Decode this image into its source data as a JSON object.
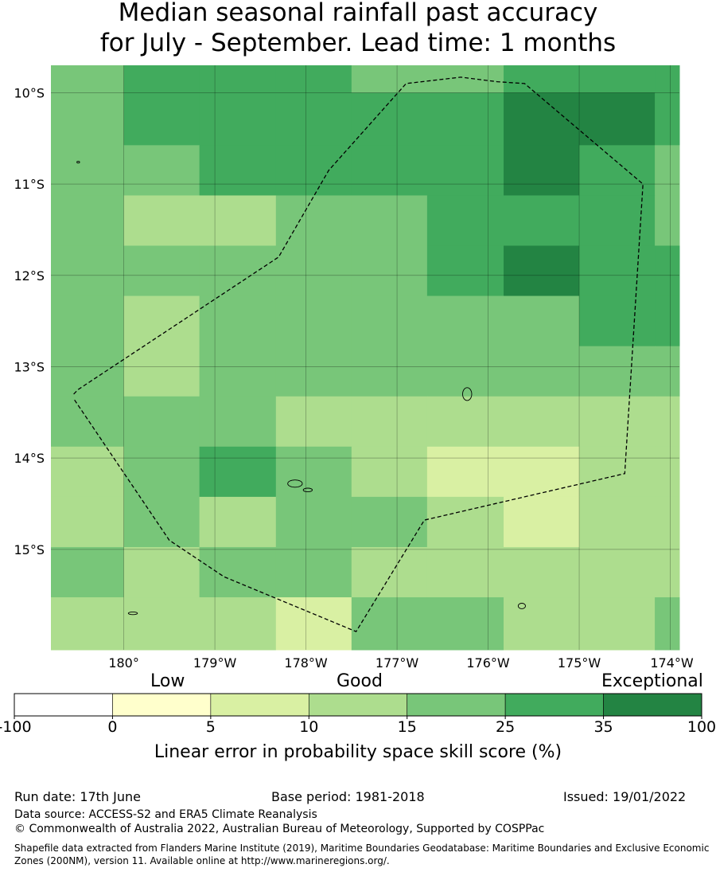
{
  "title": {
    "line1": "Median seasonal rainfall past accuracy",
    "line2": "for July - September. Lead time: 1 months"
  },
  "map": {
    "lat_labels": [
      "10°S",
      "11°S",
      "12°S",
      "13°S",
      "14°S",
      "15°S"
    ],
    "lon_labels": [
      "180°",
      "179°W",
      "178°W",
      "177°W",
      "176°W",
      "175°W",
      "174°W"
    ],
    "lon_range": [
      -180.8,
      -173.9
    ],
    "lat_range": [
      -9.7,
      -16.1
    ],
    "grid_lon_edges": [
      -180.8,
      -180.0,
      -179.17,
      -178.33,
      -177.5,
      -176.67,
      -175.83,
      -175.0,
      -174.17,
      -173.9
    ],
    "grid_lat_edges": [
      -9.7,
      -10.0,
      -10.575,
      -11.125,
      -11.675,
      -12.225,
      -12.775,
      -13.325,
      -13.875,
      -14.425,
      -14.975,
      -15.525,
      -16.1
    ],
    "skill_category_grid": [
      [
        4,
        5,
        5,
        5,
        4,
        4,
        5,
        5,
        5
      ],
      [
        4,
        5,
        5,
        5,
        5,
        5,
        6,
        6,
        5
      ],
      [
        4,
        4,
        5,
        5,
        5,
        5,
        6,
        5,
        4
      ],
      [
        4,
        3,
        3,
        4,
        4,
        5,
        5,
        5,
        4
      ],
      [
        4,
        4,
        4,
        4,
        4,
        5,
        6,
        5,
        5
      ],
      [
        4,
        3,
        4,
        4,
        4,
        4,
        4,
        5,
        5
      ],
      [
        4,
        3,
        4,
        4,
        4,
        4,
        4,
        4,
        4
      ],
      [
        4,
        4,
        4,
        3,
        3,
        3,
        3,
        3,
        3
      ],
      [
        3,
        4,
        5,
        4,
        3,
        2,
        2,
        3,
        3
      ],
      [
        3,
        4,
        3,
        4,
        4,
        3,
        2,
        3,
        3
      ],
      [
        4,
        3,
        4,
        4,
        3,
        3,
        3,
        3,
        3
      ],
      [
        3,
        3,
        3,
        2,
        4,
        4,
        3,
        3,
        4
      ]
    ],
    "boundary": [
      [
        -180.55,
        -13.3
      ],
      [
        -180.5,
        -13.25
      ],
      [
        -178.3,
        -11.8
      ],
      [
        -177.75,
        -10.85
      ],
      [
        -176.9,
        -9.9
      ],
      [
        -176.3,
        -9.83
      ],
      [
        -175.9,
        -9.88
      ],
      [
        -175.6,
        -9.9
      ],
      [
        -174.3,
        -11.0
      ],
      [
        -174.5,
        -14.17
      ],
      [
        -176.7,
        -14.68
      ],
      [
        -177.45,
        -15.9
      ],
      [
        -178.9,
        -15.3
      ],
      [
        -179.5,
        -14.9
      ],
      [
        -180.55,
        -13.35
      ]
    ],
    "islands": [
      {
        "lon": -176.23,
        "lat": -13.3,
        "rx": 0.05,
        "ry": 0.07
      },
      {
        "lon": -178.12,
        "lat": -14.28,
        "rx": 0.08,
        "ry": 0.04
      },
      {
        "lon": -177.98,
        "lat": -14.35,
        "rx": 0.05,
        "ry": 0.02
      },
      {
        "lon": -175.63,
        "lat": -15.62,
        "rx": 0.04,
        "ry": 0.03
      },
      {
        "lon": -179.9,
        "lat": -15.7,
        "rx": 0.05,
        "ry": 0.015
      },
      {
        "lon": -180.5,
        "lat": -10.76,
        "rx": 0.015,
        "ry": 0.01
      }
    ]
  },
  "colorbar": {
    "ticks": [
      "-100",
      "0",
      "5",
      "10",
      "15",
      "25",
      "35",
      "100"
    ],
    "colors": [
      "#ffffff",
      "#ffffcc",
      "#d9f0a3",
      "#addd8e",
      "#78c679",
      "#41ab5d",
      "#238443"
    ],
    "label_low": "Low",
    "label_good": "Good",
    "label_exceptional": "Exceptional",
    "title": "Linear error in probability space skill score (%)"
  },
  "footer": {
    "run_date": "Run date: 17th June",
    "base_period": "Base period: 1981-2018",
    "issued": "Issued: 19/01/2022",
    "data_source": "Data source: ACCESS-S2 and ERA5 Climate Reanalysis",
    "copyright": "© Commonwealth of Australia 2022, Australian Bureau of Meteorology, Supported by COSPPac",
    "shapefile": "Shapefile data extracted from Flanders Marine Institute (2019), Maritime Boundaries Geodatabase: Maritime Boundaries and Exclusive Economic Zones (200NM), version 11. Available online at http://www.marineregions.org/."
  }
}
